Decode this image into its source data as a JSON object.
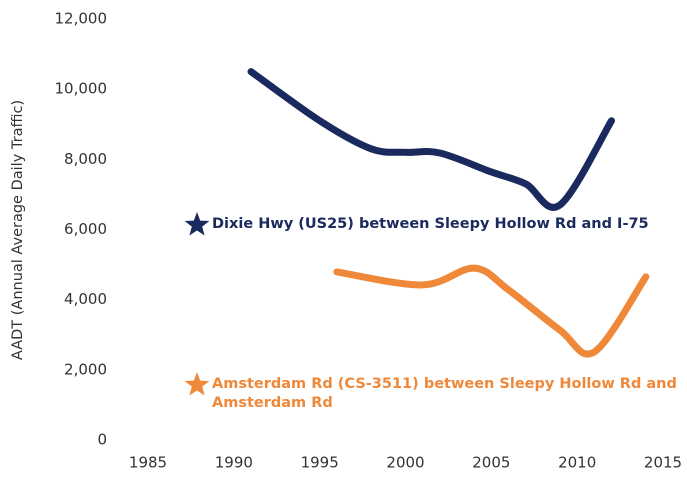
{
  "chart_data": {
    "type": "line",
    "y_label": "AADT (Annual Average Daily Traffic)",
    "xlim": [
      1985,
      2015
    ],
    "xticks": [
      1985,
      1990,
      1995,
      2000,
      2005,
      2010,
      2015
    ],
    "ylim": [
      0,
      12000
    ],
    "yticks": [
      0,
      {
        "value": 2000,
        "label": "2,000"
      },
      {
        "value": 4000,
        "label": "4,000"
      },
      {
        "value": 6000,
        "label": "6,000"
      },
      {
        "value": 8000,
        "label": "8,000"
      },
      {
        "value": 10000,
        "label": "10,000"
      },
      {
        "value": 12000,
        "label": "12,000"
      }
    ],
    "grid": false,
    "series": [
      {
        "name": "Dixie Hwy (US25) between Sleepy Hollow Rd and I-75",
        "color": "#1b2a5e",
        "x": [
          1991,
          1995,
          1998,
          2000,
          2002,
          2005,
          2007,
          2009,
          2012
        ],
        "values": [
          10500,
          9100,
          8300,
          8200,
          8180,
          7640,
          7300,
          6700,
          9100
        ]
      },
      {
        "name": "Amsterdam Rd (CS-3511) between Sleepy Hollow Rd and Amsterdam Rd",
        "color": "#f0883a",
        "x": [
          1996,
          2001,
          2004,
          2006,
          2009,
          2011,
          2014
        ],
        "values": [
          4790,
          4420,
          4900,
          4280,
          3130,
          2510,
          4650
        ]
      }
    ]
  }
}
